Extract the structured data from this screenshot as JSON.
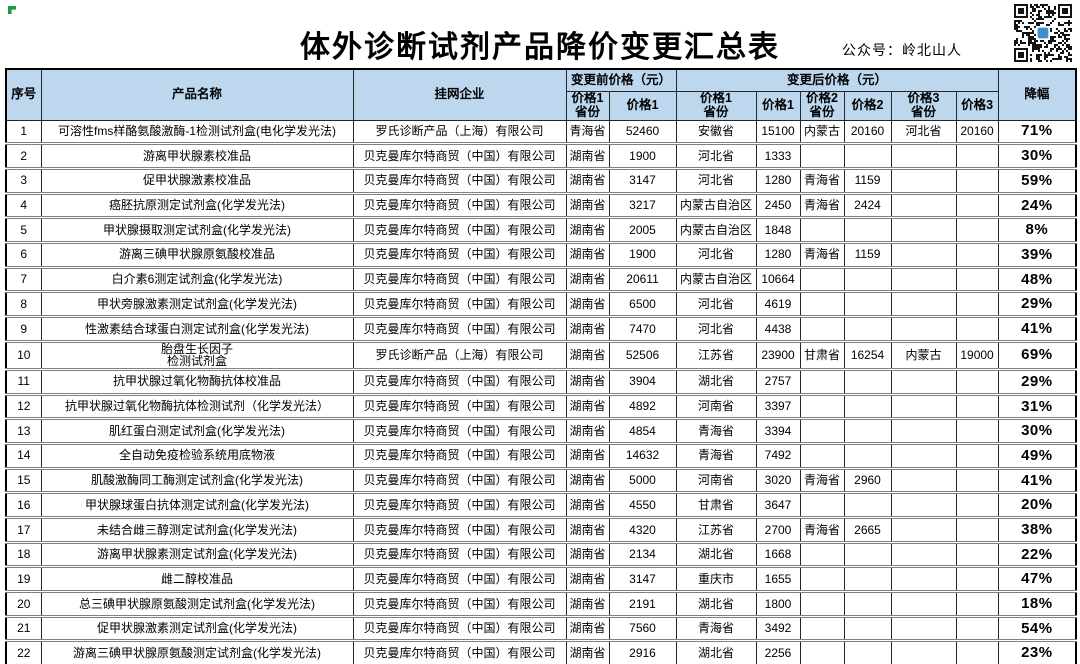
{
  "page": {
    "title": "体外诊断试剂产品降价变更汇总表",
    "account_label": "公众号：岭北山人",
    "icons": {
      "qr_code": "qr-code",
      "corner_marker": "green-corner-marker"
    },
    "colors": {
      "header_bg": "#BDD7EE",
      "qr_logo_blue": "#3D8FC9",
      "marker_green": "#1F9C3C",
      "row_divider": "#808080"
    }
  },
  "table": {
    "headers": {
      "no": "序号",
      "product": "产品名称",
      "company": "挂网企业",
      "before_group": "变更前价格（元）",
      "after_group": "变更后价格（元）",
      "before_p1_province": "价格1\n省份",
      "before_p1": "价格1",
      "after_p1_province": "价格1\n省份",
      "after_p1": "价格1",
      "after_p2_province": "价格2\n省份",
      "after_p2": "价格2",
      "after_p3_province": "价格3\n省份",
      "after_p3": "价格3",
      "discount": "降幅"
    },
    "column_keys": [
      "no",
      "product",
      "company",
      "before_p1_province",
      "before_p1",
      "after_p1_province",
      "after_p1",
      "after_p2_province",
      "after_p2",
      "after_p3_province",
      "after_p3",
      "discount"
    ],
    "rows": [
      [
        "1",
        "可溶性fms样酪氨酸激酶-1检测试剂盒(电化学发光法)",
        "罗氏诊断产品（上海）有限公司",
        "青海省",
        "52460",
        "安徽省",
        "15100",
        "内蒙古",
        "20160",
        "河北省",
        "20160",
        "71%"
      ],
      [
        "2",
        "游离甲状腺素校准品",
        "贝克曼库尔特商贸（中国）有限公司",
        "湖南省",
        "1900",
        "河北省",
        "1333",
        "",
        "",
        "",
        "",
        "30%"
      ],
      [
        "3",
        "促甲状腺激素校准品",
        "贝克曼库尔特商贸（中国）有限公司",
        "湖南省",
        "3147",
        "河北省",
        "1280",
        "青海省",
        "1159",
        "",
        "",
        "59%"
      ],
      [
        "4",
        "癌胚抗原测定试剂盒(化学发光法)",
        "贝克曼库尔特商贸（中国）有限公司",
        "湖南省",
        "3217",
        "内蒙古自治区",
        "2450",
        "青海省",
        "2424",
        "",
        "",
        "24%"
      ],
      [
        "5",
        "甲状腺摄取测定试剂盒(化学发光法)",
        "贝克曼库尔特商贸（中国）有限公司",
        "湖南省",
        "2005",
        "内蒙古自治区",
        "1848",
        "",
        "",
        "",
        "",
        "8%"
      ],
      [
        "6",
        "游离三碘甲状腺原氨酸校准品",
        "贝克曼库尔特商贸（中国）有限公司",
        "湖南省",
        "1900",
        "河北省",
        "1280",
        "青海省",
        "1159",
        "",
        "",
        "39%"
      ],
      [
        "7",
        "白介素6测定试剂盒(化学发光法)",
        "贝克曼库尔特商贸（中国）有限公司",
        "湖南省",
        "20611",
        "内蒙古自治区",
        "10664",
        "",
        "",
        "",
        "",
        "48%"
      ],
      [
        "8",
        "甲状旁腺激素测定试剂盒(化学发光法)",
        "贝克曼库尔特商贸（中国）有限公司",
        "湖南省",
        "6500",
        "河北省",
        "4619",
        "",
        "",
        "",
        "",
        "29%"
      ],
      [
        "9",
        "性激素结合球蛋白测定试剂盒(化学发光法)",
        "贝克曼库尔特商贸（中国）有限公司",
        "湖南省",
        "7470",
        "河北省",
        "4438",
        "",
        "",
        "",
        "",
        "41%"
      ],
      [
        "10",
        "胎盘生长因子\n检测试剂盒",
        "罗氏诊断产品（上海）有限公司",
        "湖南省",
        "52506",
        "江苏省",
        "23900",
        "甘肃省",
        "16254",
        "内蒙古",
        "19000",
        "69%"
      ],
      [
        "11",
        "抗甲状腺过氧化物酶抗体校准品",
        "贝克曼库尔特商贸（中国）有限公司",
        "湖南省",
        "3904",
        "湖北省",
        "2757",
        "",
        "",
        "",
        "",
        "29%"
      ],
      [
        "12",
        "抗甲状腺过氧化物酶抗体检测试剂（化学发光法）",
        "贝克曼库尔特商贸（中国）有限公司",
        "湖南省",
        "4892",
        "河南省",
        "3397",
        "",
        "",
        "",
        "",
        "31%"
      ],
      [
        "13",
        "肌红蛋白测定试剂盒(化学发光法)",
        "贝克曼库尔特商贸（中国）有限公司",
        "湖南省",
        "4854",
        "青海省",
        "3394",
        "",
        "",
        "",
        "",
        "30%"
      ],
      [
        "14",
        "全自动免疫检验系统用底物液",
        "贝克曼库尔特商贸（中国）有限公司",
        "湖南省",
        "14632",
        "青海省",
        "7492",
        "",
        "",
        "",
        "",
        "49%"
      ],
      [
        "15",
        "肌酸激酶同工酶测定试剂盒(化学发光法)",
        "贝克曼库尔特商贸（中国）有限公司",
        "湖南省",
        "5000",
        "河南省",
        "3020",
        "青海省",
        "2960",
        "",
        "",
        "41%"
      ],
      [
        "16",
        "甲状腺球蛋白抗体测定试剂盒(化学发光法)",
        "贝克曼库尔特商贸（中国）有限公司",
        "湖南省",
        "4550",
        "甘肃省",
        "3647",
        "",
        "",
        "",
        "",
        "20%"
      ],
      [
        "17",
        "未结合雌三醇测定试剂盒(化学发光法)",
        "贝克曼库尔特商贸（中国）有限公司",
        "湖南省",
        "4320",
        "江苏省",
        "2700",
        "青海省",
        "2665",
        "",
        "",
        "38%"
      ],
      [
        "18",
        "游离甲状腺素测定试剂盒(化学发光法)",
        "贝克曼库尔特商贸（中国）有限公司",
        "湖南省",
        "2134",
        "湖北省",
        "1668",
        "",
        "",
        "",
        "",
        "22%"
      ],
      [
        "19",
        "雌二醇校准品",
        "贝克曼库尔特商贸（中国）有限公司",
        "湖南省",
        "3147",
        "重庆市",
        "1655",
        "",
        "",
        "",
        "",
        "47%"
      ],
      [
        "20",
        "总三碘甲状腺原氨酸测定试剂盒(化学发光法)",
        "贝克曼库尔特商贸（中国）有限公司",
        "湖南省",
        "2191",
        "湖北省",
        "1800",
        "",
        "",
        "",
        "",
        "18%"
      ],
      [
        "21",
        "促甲状腺激素测定试剂盒(化学发光法)",
        "贝克曼库尔特商贸（中国）有限公司",
        "湖南省",
        "7560",
        "青海省",
        "3492",
        "",
        "",
        "",
        "",
        "54%"
      ],
      [
        "22",
        "游离三碘甲状腺原氨酸测定试剂盒(化学发光法)",
        "贝克曼库尔特商贸（中国）有限公司",
        "湖南省",
        "2916",
        "湖北省",
        "2256",
        "",
        "",
        "",
        "",
        "23%"
      ]
    ]
  }
}
